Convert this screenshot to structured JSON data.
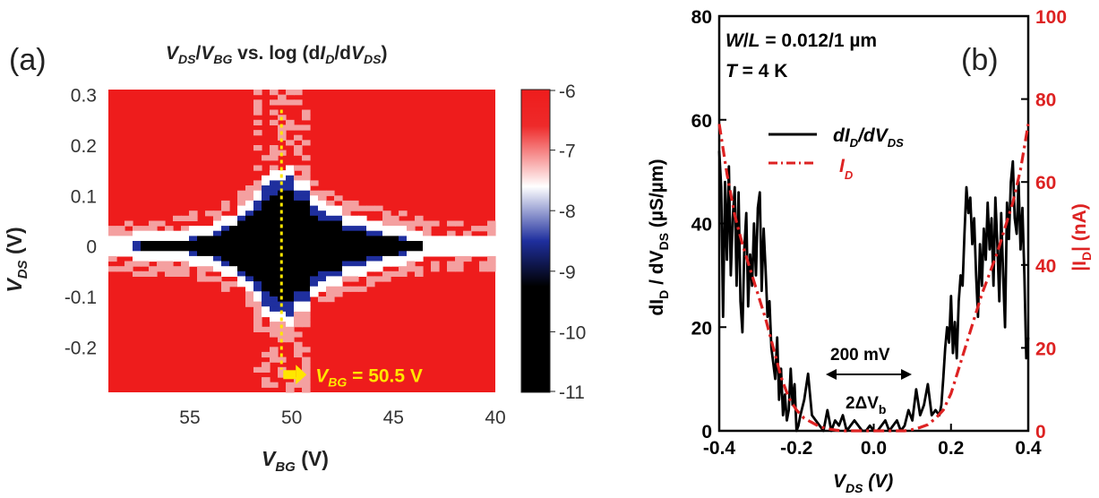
{
  "chart_data": [
    {
      "panel": "(a)",
      "type": "heatmap",
      "title": {
        "v1": "V",
        "s1": "DS",
        "slash": "/",
        "v2": "V",
        "s2": "BG",
        "mid": " vs. log (d",
        "v3": "I",
        "s3": "D",
        "slash2": "/d",
        "v4": "V",
        "s4": "DS",
        "end": ")"
      },
      "xlabel": {
        "v": "V",
        "sub": "BG",
        "unit": " (V)"
      },
      "ylabel": {
        "v": "V",
        "sub": "DS",
        "unit": " (V)"
      },
      "x_range": [
        59,
        40
      ],
      "x_reversed": true,
      "y_range": [
        -0.29,
        0.31
      ],
      "x_ticks": [
        "55",
        "50",
        "45",
        "40"
      ],
      "x_tick_values": [
        55,
        50,
        45,
        40
      ],
      "y_ticks": [
        "0.3",
        "0.2",
        "0.1",
        "0",
        "-0.1",
        "-0.2"
      ],
      "y_tick_values": [
        0.3,
        0.2,
        0.1,
        0,
        -0.1,
        -0.2
      ],
      "colorbar": {
        "ticks": [
          "-6",
          "-7",
          "-8",
          "-9",
          "-10",
          "-11"
        ],
        "tick_values": [
          -6,
          -7,
          -8,
          -9,
          -10,
          -11
        ],
        "range": [
          -11,
          -6
        ],
        "colors": {
          "high": "#ee1c1c",
          "mid_white": "#ffffff",
          "mid_blue": "#1f2f9e",
          "low": "#000000"
        }
      },
      "gap_profile": {
        "vbg": [
          59,
          57,
          55,
          54,
          53,
          52,
          51.5,
          50.5,
          49.5,
          49,
          48,
          47,
          46,
          45,
          44,
          43
        ],
        "half_width_vds": [
          0.0,
          0.01,
          0.015,
          0.025,
          0.045,
          0.08,
          0.1,
          0.145,
          0.11,
          0.08,
          0.06,
          0.045,
          0.03,
          0.02,
          0.012,
          0.0
        ]
      },
      "marker": {
        "vbg": 50.5,
        "label_v": "V",
        "label_sub": "BG",
        "label_val": " = 50.5 V",
        "color": "#ffe600"
      }
    },
    {
      "panel": "(b)",
      "type": "line",
      "xlabel": {
        "v": "V",
        "sub": "DS",
        "unit": " (V)"
      },
      "ylabel_left": {
        "pre": "dI",
        "sub1": "D",
        "mid": " / dV",
        "sub2": "DS",
        "unit": " (µS/µm)"
      },
      "ylabel_right": {
        "pre": "|I",
        "sub": "D",
        "post": "| (nA)"
      },
      "x_range": [
        -0.4,
        0.4
      ],
      "y_left_range": [
        0,
        80
      ],
      "y_right_range": [
        0,
        100
      ],
      "x_ticks": [
        "-0.4",
        "-0.2",
        "0.0",
        "0.2",
        "0.4"
      ],
      "x_tick_values": [
        -0.4,
        -0.2,
        0.0,
        0.2,
        0.4
      ],
      "y_left_ticks": [
        "0",
        "20",
        "40",
        "60",
        "80"
      ],
      "y_left_tick_values": [
        0,
        20,
        40,
        60,
        80
      ],
      "y_right_ticks": [
        "0",
        "20",
        "40",
        "60",
        "80",
        "100"
      ],
      "y_right_tick_values": [
        0,
        20,
        40,
        60,
        80,
        100
      ],
      "annotation_wl": {
        "a": "W",
        "b": "/",
        "c": "L",
        "d": " = 0.012/1 µm"
      },
      "annotation_t": {
        "a": "T",
        "b": " = 4 K"
      },
      "annotation_200": "200 mV",
      "annotation_gap": {
        "a": "2ΔV",
        "b": "b"
      },
      "series": [
        {
          "name": {
            "pre": "dI",
            "sub1": "D",
            "mid": "/dV",
            "sub2": "DS"
          },
          "color": "#000000",
          "axis": "left",
          "x": [
            -0.4,
            -0.395,
            -0.39,
            -0.385,
            -0.38,
            -0.375,
            -0.37,
            -0.365,
            -0.36,
            -0.355,
            -0.35,
            -0.345,
            -0.34,
            -0.335,
            -0.33,
            -0.325,
            -0.32,
            -0.315,
            -0.31,
            -0.305,
            -0.3,
            -0.295,
            -0.29,
            -0.285,
            -0.28,
            -0.275,
            -0.27,
            -0.265,
            -0.26,
            -0.255,
            -0.25,
            -0.245,
            -0.24,
            -0.235,
            -0.23,
            -0.225,
            -0.22,
            -0.215,
            -0.21,
            -0.205,
            -0.2,
            -0.195,
            -0.19,
            -0.18,
            -0.17,
            -0.16,
            -0.15,
            -0.14,
            -0.13,
            -0.12,
            -0.11,
            -0.1,
            -0.09,
            -0.08,
            -0.07,
            -0.06,
            -0.05,
            -0.04,
            -0.03,
            -0.02,
            -0.01,
            0.0,
            0.01,
            0.02,
            0.03,
            0.04,
            0.05,
            0.06,
            0.07,
            0.08,
            0.09,
            0.1,
            0.11,
            0.12,
            0.13,
            0.14,
            0.15,
            0.16,
            0.17,
            0.175,
            0.18,
            0.185,
            0.19,
            0.195,
            0.2,
            0.205,
            0.21,
            0.215,
            0.22,
            0.225,
            0.23,
            0.235,
            0.24,
            0.245,
            0.25,
            0.255,
            0.26,
            0.265,
            0.27,
            0.275,
            0.28,
            0.285,
            0.29,
            0.295,
            0.3,
            0.305,
            0.31,
            0.315,
            0.32,
            0.325,
            0.33,
            0.335,
            0.34,
            0.345,
            0.35,
            0.355,
            0.36,
            0.365,
            0.37,
            0.375,
            0.38,
            0.385,
            0.39,
            0.395,
            0.4
          ],
          "y": [
            54,
            47,
            22,
            48,
            33,
            51,
            30,
            41,
            47,
            28,
            46,
            25,
            19,
            35,
            42,
            24,
            34,
            28,
            40,
            30,
            43,
            46,
            27,
            39,
            31,
            22,
            25,
            16,
            13,
            10,
            18,
            6,
            12,
            3,
            7,
            2,
            4,
            12,
            5,
            9,
            0,
            1,
            3,
            6,
            11,
            3,
            2,
            1,
            0,
            4,
            0,
            2,
            1,
            3,
            0,
            1,
            2,
            1,
            0,
            0,
            1,
            0,
            0,
            1,
            2,
            0,
            1,
            2,
            0,
            1,
            4,
            2,
            8,
            3,
            5,
            9,
            3,
            4,
            3,
            5,
            10,
            16,
            20,
            17,
            26,
            15,
            21,
            14,
            25,
            30,
            28,
            38,
            47,
            42,
            45,
            36,
            41,
            30,
            22,
            36,
            28,
            39,
            33,
            44,
            35,
            41,
            28,
            45,
            36,
            25,
            42,
            30,
            20,
            44,
            37,
            48,
            52,
            41,
            38,
            48,
            35,
            43,
            30,
            14,
            18
          ],
          "style": "solid"
        },
        {
          "name": {
            "pre": "I",
            "sub": "D"
          },
          "color": "#dd2222",
          "axis": "right",
          "x": [
            -0.4,
            -0.38,
            -0.36,
            -0.34,
            -0.32,
            -0.3,
            -0.28,
            -0.26,
            -0.24,
            -0.22,
            -0.2,
            -0.18,
            -0.16,
            -0.14,
            -0.12,
            -0.1,
            -0.08,
            -0.06,
            -0.04,
            -0.02,
            0.0,
            0.02,
            0.04,
            0.06,
            0.08,
            0.1,
            0.12,
            0.14,
            0.16,
            0.18,
            0.2,
            0.22,
            0.24,
            0.26,
            0.28,
            0.3,
            0.32,
            0.34,
            0.36,
            0.38,
            0.4
          ],
          "y": [
            74,
            62,
            52,
            45,
            39,
            33,
            27,
            20,
            13,
            8,
            5,
            3,
            2,
            1,
            0.5,
            0.2,
            0,
            0,
            0,
            0,
            0,
            0,
            0,
            0,
            0,
            0.3,
            0.8,
            1.5,
            3,
            5,
            9,
            15,
            21,
            27,
            33,
            38,
            43,
            49,
            55,
            63,
            74
          ],
          "style": "dash-dot"
        }
      ]
    }
  ]
}
